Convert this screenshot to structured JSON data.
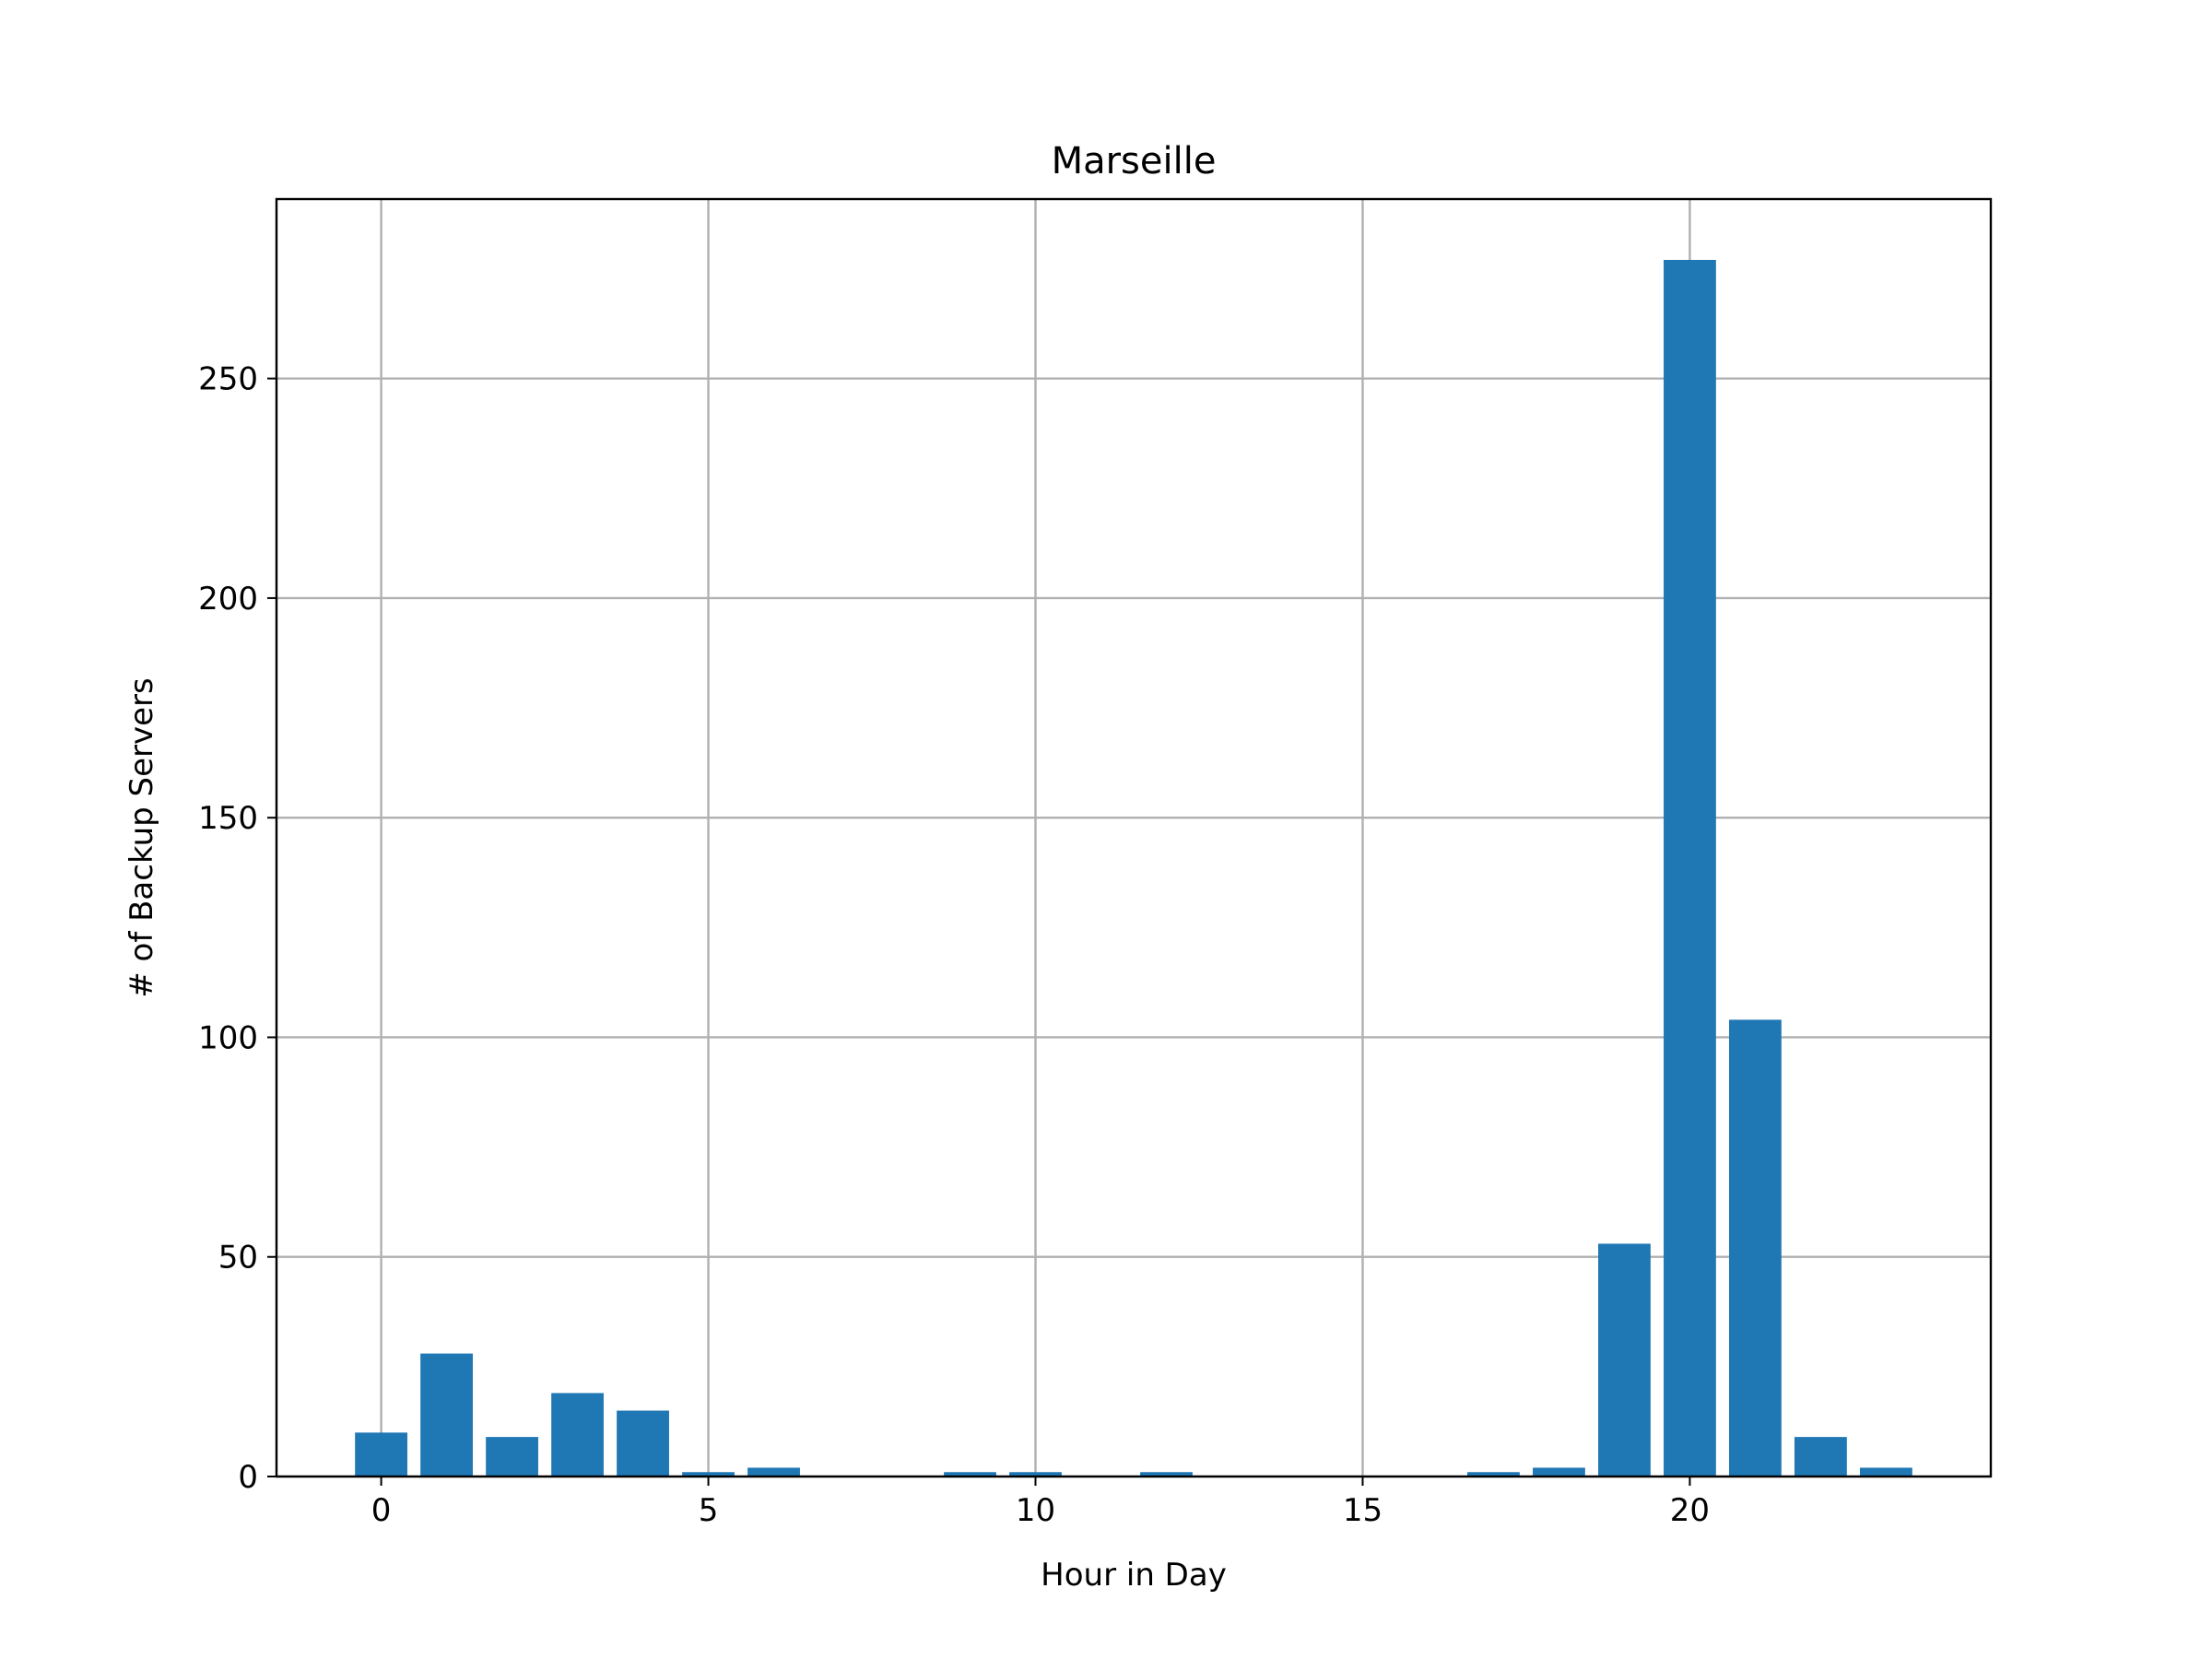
{
  "chart_data": {
    "type": "bar",
    "title": "Marseille",
    "xlabel": "Hour in Day",
    "ylabel": "# of Backup Servers",
    "x": [
      0,
      1,
      2,
      3,
      4,
      5,
      6,
      7,
      8,
      9,
      10,
      11,
      12,
      13,
      14,
      15,
      16,
      17,
      18,
      19,
      20,
      21,
      22,
      23
    ],
    "values": [
      10,
      28,
      9,
      19,
      15,
      1,
      2,
      0,
      0,
      1,
      1,
      0,
      1,
      0,
      0,
      0,
      0,
      1,
      2,
      53,
      277,
      104,
      9,
      2
    ],
    "xlim": [
      -1.6,
      24.6
    ],
    "ylim": [
      0,
      290.85
    ],
    "xticks": [
      0,
      5,
      10,
      15,
      20
    ],
    "xtick_labels": [
      "0",
      "5",
      "10",
      "15",
      "20"
    ],
    "yticks": [
      0,
      50,
      100,
      150,
      200,
      250
    ],
    "ytick_labels": [
      "0",
      "50",
      "100",
      "150",
      "200",
      "250"
    ],
    "bar_width": 0.8,
    "grid": true,
    "bar_color": "#1f77b4"
  }
}
